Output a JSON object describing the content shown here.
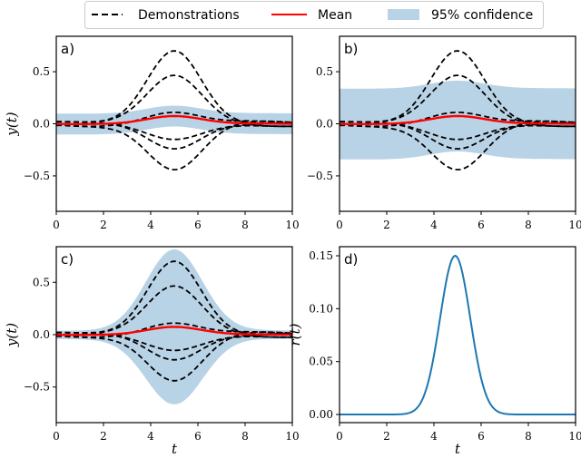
{
  "legend": {
    "items": [
      {
        "label": "Demonstrations",
        "style": "dashed",
        "color": "#000000"
      },
      {
        "label": "Mean",
        "style": "solid",
        "color": "#ff0000"
      },
      {
        "label": "95% confidence",
        "style": "patch",
        "color": "#b9d3e6"
      }
    ]
  },
  "colors": {
    "demonstration": "#000000",
    "mean": "#ff0000",
    "confidence": "#b9d3e6",
    "r_curve": "#1f77b4"
  },
  "chart_data": [
    {
      "type": "line",
      "panel": "a)",
      "xlabel": "",
      "ylabel": "y(t)",
      "xlim": [
        0,
        10
      ],
      "ylim": [
        -0.84,
        0.84
      ],
      "xticks": [
        "0",
        "2",
        "4",
        "6",
        "8",
        "10"
      ],
      "xtick_values": [
        0,
        2,
        4,
        6,
        8,
        10
      ],
      "yticks": [
        "0.5",
        "0.0",
        "−0.5"
      ],
      "ytick_values": [
        0.5,
        0.0,
        -0.5
      ],
      "demonstrations": {
        "description": "Gaussian bumps centered at t=5",
        "peak_values": [
          0.7,
          0.465,
          0.11,
          -0.15,
          -0.24,
          -0.44
        ],
        "center": 5.0,
        "width_sigma": 1.15
      },
      "mean": {
        "peak_value": 0.065,
        "at_t": 5.0
      },
      "confidence": {
        "type": "constant",
        "half_width": 0.1
      }
    },
    {
      "type": "line",
      "panel": "b)",
      "xlabel": "",
      "ylabel": "",
      "xlim": [
        0,
        10
      ],
      "ylim": [
        -0.84,
        0.84
      ],
      "xticks": [
        "0",
        "2",
        "4",
        "6",
        "8",
        "10"
      ],
      "xtick_values": [
        0,
        2,
        4,
        6,
        8,
        10
      ],
      "yticks": [
        "0.5",
        "0.0",
        "−0.5"
      ],
      "ytick_values": [
        0.5,
        0.0,
        -0.5
      ],
      "demonstrations": {
        "description": "Gaussian bumps centered at t=5",
        "peak_values": [
          0.7,
          0.465,
          0.11,
          -0.15,
          -0.24,
          -0.44
        ],
        "center": 5.0,
        "width_sigma": 1.15
      },
      "mean": {
        "peak_value": 0.065,
        "at_t": 5.0
      },
      "confidence": {
        "type": "constant",
        "half_width": 0.34
      }
    },
    {
      "type": "line",
      "panel": "c)",
      "xlabel": "t",
      "ylabel": "y(t)",
      "xlim": [
        0,
        10
      ],
      "ylim": [
        -0.84,
        0.84
      ],
      "xticks": [
        "0",
        "2",
        "4",
        "6",
        "8",
        "10"
      ],
      "xtick_values": [
        0,
        2,
        4,
        6,
        8,
        10
      ],
      "yticks": [
        "0.5",
        "0.0",
        "−0.5"
      ],
      "ytick_values": [
        0.5,
        0.0,
        -0.5
      ],
      "demonstrations": {
        "description": "Gaussian bumps centered at t=5",
        "peak_values": [
          0.7,
          0.465,
          0.11,
          -0.15,
          -0.24,
          -0.44
        ],
        "center": 5.0,
        "width_sigma": 1.15
      },
      "mean": {
        "peak_value": 0.065,
        "at_t": 5.0
      },
      "confidence": {
        "type": "time-varying",
        "half_width_min": 0.04,
        "half_width_peak": 0.74,
        "peak_at_t": 5.0,
        "upper_peak": 0.8,
        "lower_peak": -0.68
      }
    },
    {
      "type": "line",
      "panel": "d)",
      "xlabel": "t",
      "ylabel": "r(t)",
      "xlim": [
        0,
        10
      ],
      "ylim": [
        -0.0077,
        0.1586
      ],
      "xticks": [
        "0",
        "2",
        "4",
        "6",
        "8",
        "10"
      ],
      "xtick_values": [
        0,
        2,
        4,
        6,
        8,
        10
      ],
      "yticks": [
        "0.15",
        "0.10",
        "0.05",
        "0.00"
      ],
      "ytick_values": [
        0.15,
        0.1,
        0.05,
        0.0
      ],
      "series": [
        {
          "name": "r(t)",
          "peak_value": 0.15,
          "peak_t": 4.9,
          "width_sigma": 0.64,
          "baseline": 0.0
        }
      ]
    }
  ]
}
